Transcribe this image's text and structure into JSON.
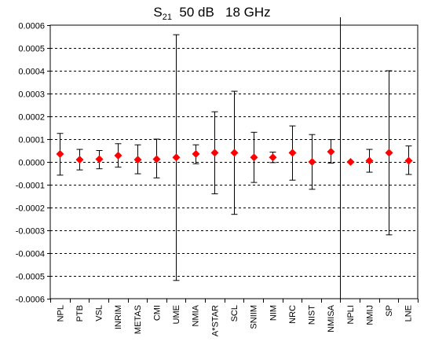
{
  "chart_data": {
    "type": "scatter",
    "title": {
      "base": "S",
      "subscript": "21",
      "rest": "  50 dB   18 GHz"
    },
    "xlabel": "",
    "ylabel": "",
    "ylim": [
      -0.0006,
      0.0006
    ],
    "yticks": [
      0.0006,
      0.0005,
      0.0004,
      0.0003,
      0.0002,
      0.0001,
      0.0,
      -0.0001,
      -0.0002,
      -0.0003,
      -0.0004,
      -0.0005,
      -0.0006
    ],
    "ytick_labels": [
      "0.0006",
      "0.0005",
      "0.0004",
      "0.0003",
      "0.0002",
      "0.0001",
      "0.0000",
      "-0.0001",
      "-0.0002",
      "-0.0003",
      "-0.0004",
      "-0.0005",
      "-0.0006"
    ],
    "grid": "horizontal dashed",
    "marker": "diamond",
    "marker_color": "#ff0000",
    "divider_after": "NMISA",
    "categories": [
      "NPL",
      "PTB",
      "VSL",
      "INRIM",
      "METAS",
      "CMI",
      "UME",
      "NMIA",
      "A*STAR",
      "SCL",
      "SNIIM",
      "NIM",
      "NRC",
      "NIST",
      "NMISA",
      "NPLI",
      "NMIJ",
      "SP",
      "LNE"
    ],
    "values": [
      3.5e-05,
      1e-05,
      1.2e-05,
      2.8e-05,
      1e-05,
      1.2e-05,
      2e-05,
      3.5e-05,
      4e-05,
      4e-05,
      2e-05,
      2e-05,
      4e-05,
      0.0,
      4.5e-05,
      0.0,
      5e-06,
      4e-05,
      5e-06
    ],
    "err_low": [
      -5.8e-05,
      -3.5e-05,
      -3e-05,
      -2.3e-05,
      -5.2e-05,
      -7e-05,
      -0.00052,
      -8e-06,
      -0.00014,
      -0.00023,
      -9e-05,
      -3e-06,
      -8e-05,
      -0.00012,
      -5e-06,
      null,
      -4.5e-05,
      -0.00032,
      -5.5e-05
    ],
    "err_high": [
      0.000125,
      5.5e-05,
      5e-05,
      8e-05,
      7.5e-05,
      0.0001,
      0.000558,
      7.5e-05,
      0.00022,
      0.00031,
      0.00013,
      4.3e-05,
      0.000158,
      0.00012,
      9.8e-05,
      null,
      5.5e-05,
      0.0004,
      7e-05
    ]
  }
}
